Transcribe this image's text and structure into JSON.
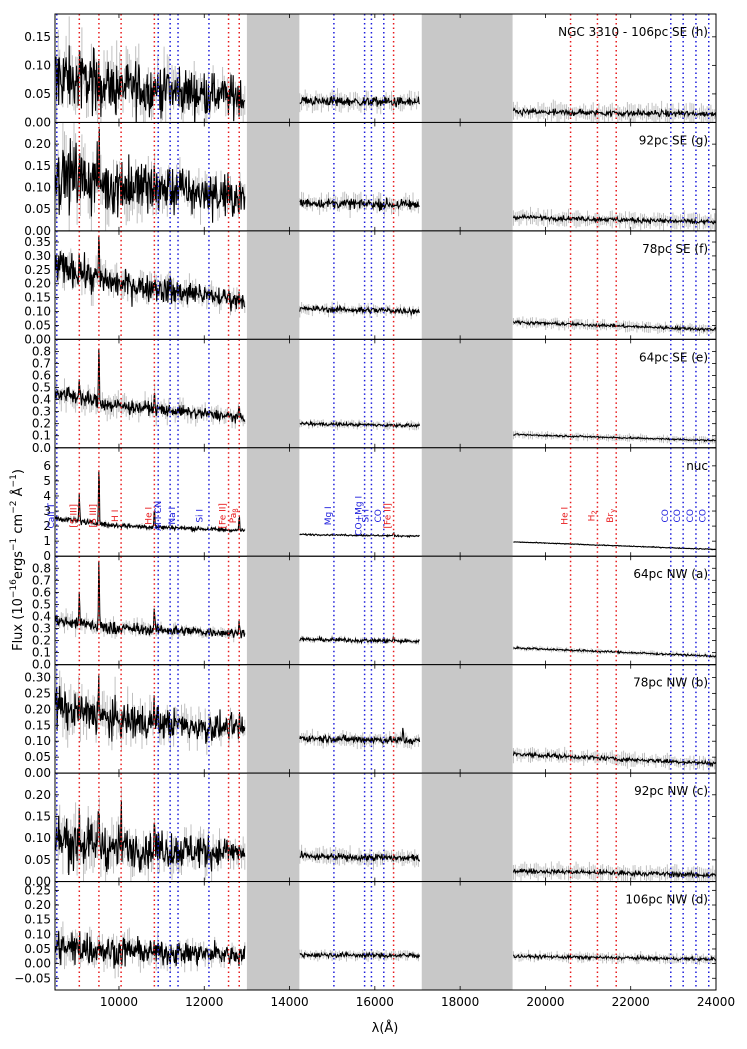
{
  "chart_data": {
    "type": "line",
    "xlabel": "λ(Å)",
    "ylabel": "Flux (10^-16 ergs^-1 cm^-2 Å^-1)",
    "ylabel_parts": {
      "a": "Flux (10",
      "exp1": "−16",
      "b": "ergs",
      "exp2": "−1",
      "c": " cm",
      "exp3": "−2",
      "d": " Å",
      "exp4": "−1",
      "e": ")"
    },
    "xlim": [
      8500,
      24000
    ],
    "x_ticks": [
      10000,
      12000,
      14000,
      16000,
      18000,
      20000,
      22000,
      24000
    ],
    "x_tick_labels": [
      "10000",
      "12000",
      "14000",
      "16000",
      "18000",
      "20000",
      "22000",
      "24000"
    ],
    "gaps": [
      [
        13000,
        14230
      ],
      [
        17100,
        19230
      ]
    ],
    "segments": [
      [
        8500,
        12950
      ],
      [
        14240,
        17050
      ],
      [
        19250,
        24000
      ]
    ],
    "colors": {
      "spectrum": "#000000",
      "error": "#c0c0c0",
      "gap": "#c8c8c8",
      "emission_line": "#e8191b",
      "absorption_line": "#1c1cdc"
    },
    "red_lines": [
      9070,
      9530,
      10050,
      10830,
      12570,
      12820,
      16440,
      20590,
      21220,
      21660
    ],
    "blue_lines": [
      8542,
      10920,
      11200,
      11385,
      12110,
      15040,
      15760,
      15920,
      16210,
      22940,
      23230,
      23530,
      23830
    ],
    "line_labels": [
      {
        "text": "CaII T",
        "x": 8542,
        "color": "blue",
        "sub": ""
      },
      {
        "text": "[S III]",
        "x": 9070,
        "color": "red",
        "sub": ""
      },
      {
        "text": "[S III]",
        "x": 9530,
        "color": "red",
        "sub": ""
      },
      {
        "text": "H I",
        "x": 10050,
        "color": "red",
        "sub": ""
      },
      {
        "text": "He I",
        "x": 10830,
        "color": "red",
        "sub": ""
      },
      {
        "text": "Al I CN",
        "x": 11060,
        "color": "blue",
        "sub": ""
      },
      {
        "text": "Na I",
        "x": 11385,
        "color": "blue",
        "sub": ""
      },
      {
        "text": "Si I",
        "x": 12030,
        "color": "blue",
        "sub": ""
      },
      {
        "text": "[Fe II]",
        "x": 12570,
        "color": "red",
        "sub": ""
      },
      {
        "text": "Pa",
        "x": 12820,
        "color": "red",
        "sub": "β"
      },
      {
        "text": "Mg I",
        "x": 15040,
        "color": "blue",
        "sub": ""
      },
      {
        "text": "CO+Mg I",
        "x": 15760,
        "color": "blue",
        "sub": ""
      },
      {
        "text": "Si I",
        "x": 15920,
        "color": "blue",
        "sub": ""
      },
      {
        "text": "CO",
        "x": 16210,
        "color": "blue",
        "sub": ""
      },
      {
        "text": "[Fe II]",
        "x": 16440,
        "color": "red",
        "sub": ""
      },
      {
        "text": "He I",
        "x": 20590,
        "color": "red",
        "sub": ""
      },
      {
        "text": "H",
        "x": 21220,
        "color": "red",
        "sub": "2"
      },
      {
        "text": "Br",
        "x": 21660,
        "color": "red",
        "sub": "γ"
      },
      {
        "text": "CO",
        "x": 22940,
        "color": "blue",
        "sub": ""
      },
      {
        "text": "CO",
        "x": 23230,
        "color": "blue",
        "sub": ""
      },
      {
        "text": "CO",
        "x": 23530,
        "color": "blue",
        "sub": ""
      },
      {
        "text": "CO",
        "x": 23830,
        "color": "blue",
        "sub": ""
      }
    ],
    "panels": [
      {
        "label": "NGC 3310 - 106pc SE (h)",
        "ylim": [
          0.0,
          0.19
        ],
        "yticks": [
          0.0,
          0.05,
          0.1,
          0.15
        ],
        "ytick_labels": [
          "0.00",
          "0.05",
          "0.10",
          "0.15"
        ],
        "level": [
          0.07,
          0.045,
          0.038,
          0.018,
          0.015
        ],
        "noise": [
          0.03,
          0.006,
          0.004
        ],
        "err": 0.03,
        "peaks": [
          [
            9070,
            0.03
          ],
          [
            9530,
            0.05
          ],
          [
            10830,
            0.02
          ],
          [
            11150,
            0.04
          ]
        ]
      },
      {
        "label": "92pc SE (g)",
        "ylim": [
          0.0,
          0.25
        ],
        "yticks": [
          0.0,
          0.05,
          0.1,
          0.15,
          0.2
        ],
        "ytick_labels": [
          "0.00",
          "0.05",
          "0.10",
          "0.15",
          "0.20"
        ],
        "level": [
          0.12,
          0.075,
          0.065,
          0.032,
          0.02
        ],
        "noise": [
          0.04,
          0.008,
          0.004
        ],
        "err": 0.035,
        "peaks": [
          [
            9070,
            0.04
          ],
          [
            9530,
            0.06
          ],
          [
            10830,
            0.03
          ],
          [
            11150,
            0.04
          ]
        ]
      },
      {
        "label": "78pc SE (f)",
        "ylim": [
          0.0,
          0.39
        ],
        "yticks": [
          0.0,
          0.05,
          0.1,
          0.15,
          0.2,
          0.25,
          0.3,
          0.35
        ],
        "ytick_labels": [
          "0.00",
          "0.05",
          "0.10",
          "0.15",
          "0.20",
          "0.25",
          "0.30",
          "0.35"
        ],
        "level": [
          0.23,
          0.14,
          0.11,
          0.062,
          0.035
        ],
        "noise": [
          0.03,
          0.008,
          0.004
        ],
        "err": 0.035,
        "peaks": [
          [
            9070,
            0.06
          ],
          [
            9530,
            0.14
          ],
          [
            10830,
            0.05
          ],
          [
            12820,
            0.03
          ]
        ]
      },
      {
        "label": "64pc SE (e)",
        "ylim": [
          0.0,
          0.9
        ],
        "yticks": [
          0.0,
          0.1,
          0.2,
          0.3,
          0.4,
          0.5,
          0.6,
          0.7,
          0.8
        ],
        "ytick_labels": [
          "0.0",
          "0.1",
          "0.2",
          "0.3",
          "0.4",
          "0.5",
          "0.6",
          "0.7",
          "0.8"
        ],
        "level": [
          0.4,
          0.25,
          0.2,
          0.11,
          0.06
        ],
        "noise": [
          0.035,
          0.01,
          0.005
        ],
        "err": 0.06,
        "peaks": [
          [
            9070,
            0.18
          ],
          [
            9530,
            0.45
          ],
          [
            10830,
            0.12
          ],
          [
            12820,
            0.08
          ]
        ]
      },
      {
        "label": "nuc",
        "ylim": [
          0.0,
          7.2
        ],
        "yticks": [
          0,
          1,
          2,
          3,
          4,
          5,
          6
        ],
        "ytick_labels": [
          "0",
          "1",
          "2",
          "3",
          "4",
          "5",
          "6"
        ],
        "level": [
          2.2,
          1.7,
          1.45,
          0.95,
          0.45
        ],
        "noise": [
          0.1,
          0.04,
          0.02
        ],
        "err": 0.1,
        "peaks": [
          [
            9070,
            1.8
          ],
          [
            9530,
            4.0
          ],
          [
            10830,
            1.3
          ],
          [
            12820,
            1.0
          ],
          [
            16440,
            0.2
          ]
        ]
      },
      {
        "label": "64pc NW (a)",
        "ylim": [
          0.0,
          0.9
        ],
        "yticks": [
          0.0,
          0.1,
          0.2,
          0.3,
          0.4,
          0.5,
          0.6,
          0.7,
          0.8
        ],
        "ytick_labels": [
          "0.0",
          "0.1",
          "0.2",
          "0.3",
          "0.4",
          "0.5",
          "0.6",
          "0.7",
          "0.8"
        ],
        "level": [
          0.32,
          0.26,
          0.21,
          0.14,
          0.07
        ],
        "noise": [
          0.03,
          0.012,
          0.006
        ],
        "err": 0.04,
        "peaks": [
          [
            9070,
            0.28
          ],
          [
            9530,
            0.55
          ],
          [
            10830,
            0.2
          ],
          [
            12820,
            0.12
          ],
          [
            16440,
            0.04
          ]
        ]
      },
      {
        "label": "78pc NW (b)",
        "ylim": [
          0.0,
          0.34
        ],
        "yticks": [
          0.0,
          0.05,
          0.1,
          0.15,
          0.2,
          0.25,
          0.3
        ],
        "ytick_labels": [
          "0.00",
          "0.05",
          "0.10",
          "0.15",
          "0.20",
          "0.25",
          "0.30"
        ],
        "level": [
          0.18,
          0.135,
          0.11,
          0.06,
          0.03
        ],
        "noise": [
          0.035,
          0.008,
          0.005
        ],
        "err": 0.04,
        "peaks": [
          [
            9070,
            0.06
          ],
          [
            9530,
            0.12
          ],
          [
            10830,
            0.05
          ],
          [
            12820,
            0.03
          ],
          [
            16660,
            0.04
          ]
        ]
      },
      {
        "label": "92pc NW (c)",
        "ylim": [
          0.0,
          0.25
        ],
        "yticks": [
          0.0,
          0.05,
          0.1,
          0.15,
          0.2
        ],
        "ytick_labels": [
          "0.00",
          "0.05",
          "0.10",
          "0.15",
          "0.20"
        ],
        "level": [
          0.085,
          0.065,
          0.058,
          0.025,
          0.015
        ],
        "noise": [
          0.03,
          0.006,
          0.004
        ],
        "err": 0.035,
        "peaks": [
          [
            9070,
            0.06
          ],
          [
            9530,
            0.1
          ],
          [
            10050,
            0.07
          ],
          [
            10830,
            0.04
          ]
        ]
      },
      {
        "label": "106pc NW (d)",
        "ylim": [
          -0.09,
          0.28
        ],
        "yticks": [
          -0.05,
          0.0,
          0.05,
          0.1,
          0.15,
          0.2,
          0.25
        ],
        "ytick_labels": [
          "−0.05",
          "0.00",
          "0.05",
          "0.10",
          "0.15",
          "0.20",
          "0.25"
        ],
        "level": [
          0.05,
          0.03,
          0.03,
          0.025,
          0.015
        ],
        "noise": [
          0.03,
          0.006,
          0.004
        ],
        "err": 0.03,
        "peaks": [
          [
            9070,
            0.04
          ],
          [
            9530,
            0.04
          ]
        ]
      }
    ]
  }
}
